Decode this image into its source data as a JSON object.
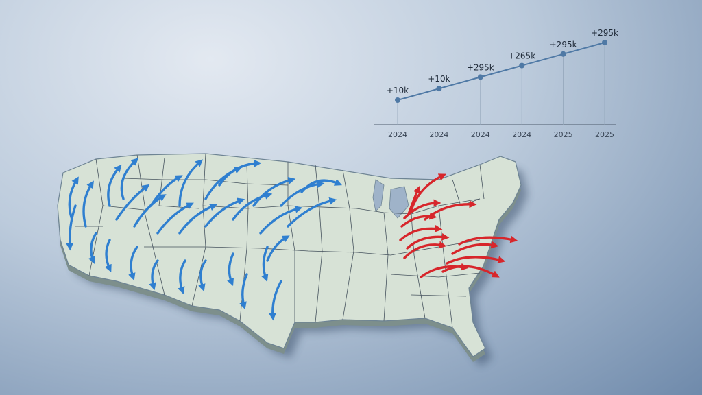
{
  "map": {
    "colors": {
      "land": "#d7e2d6",
      "land_edge": "#6e8494",
      "state_border": "#46535e",
      "outflow": "#2f7fd0",
      "inflow": "#d7262b"
    }
  },
  "chart_data": {
    "type": "line",
    "title": "",
    "xlabel": "",
    "ylabel": "",
    "categories": [
      "2024",
      "2024",
      "2024",
      "2024",
      "2025",
      "2025"
    ],
    "values": [
      1,
      2,
      3,
      4,
      5,
      6
    ],
    "data_labels": [
      "+10k",
      "+10k",
      "+295k",
      "+265k",
      "+295k",
      "+295k"
    ],
    "grid": false,
    "legend": "none",
    "line_color": "#4f79a5"
  }
}
